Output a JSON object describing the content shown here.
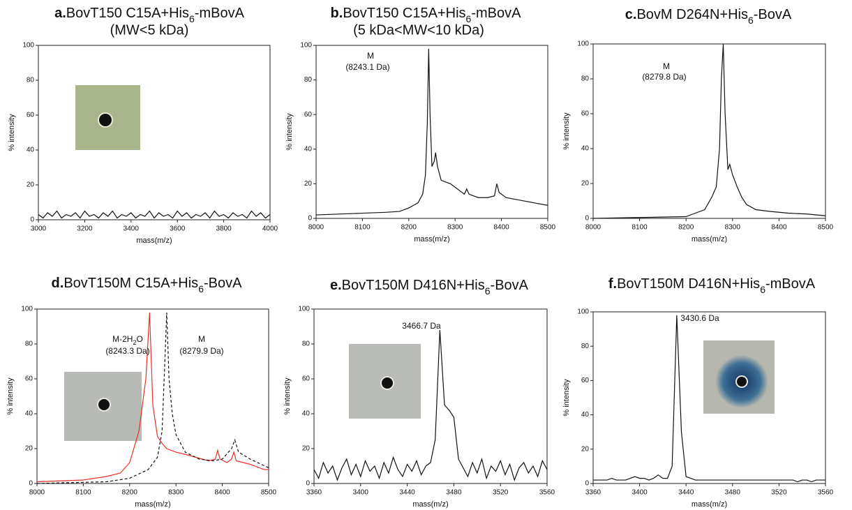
{
  "chart_data": [
    {
      "type": "line",
      "label": "a.",
      "title": [
        "BovT150 C15A+His",
        "6",
        "-mBovA"
      ],
      "subtitle": "(MW<5 kDa)",
      "xlabel": "mass(m/z)",
      "ylabel": "% intensity",
      "xlim": [
        3000,
        4000
      ],
      "xticks": [
        3000,
        3200,
        3400,
        3600,
        3800,
        4000
      ],
      "ylim": [
        0,
        100
      ],
      "yticks": [
        0,
        20,
        40,
        60,
        80,
        100
      ],
      "series": [
        {
          "color": "#111111",
          "dashed": false,
          "x": [
            3000,
            3020,
            3040,
            3060,
            3080,
            3100,
            3120,
            3140,
            3160,
            3180,
            3200,
            3220,
            3240,
            3260,
            3280,
            3300,
            3320,
            3340,
            3360,
            3380,
            3400,
            3420,
            3440,
            3460,
            3480,
            3500,
            3520,
            3540,
            3560,
            3580,
            3600,
            3620,
            3640,
            3660,
            3680,
            3700,
            3720,
            3740,
            3760,
            3780,
            3800,
            3820,
            3840,
            3860,
            3880,
            3900,
            3920,
            3940,
            3960,
            3980,
            4000
          ],
          "values": [
            3,
            1,
            4,
            2,
            5,
            1,
            3,
            2,
            4,
            1,
            5,
            2,
            3,
            1,
            4,
            2,
            5,
            1,
            3,
            2,
            4,
            1,
            3,
            2,
            5,
            1,
            4,
            2,
            3,
            1,
            5,
            2,
            4,
            1,
            3,
            2,
            4,
            1,
            5,
            2,
            3,
            1,
            4,
            2,
            3,
            1,
            5,
            2,
            4,
            1,
            3
          ]
        }
      ],
      "annotations": []
    },
    {
      "type": "line",
      "label": "b.",
      "title": [
        "BovT150 C15A+His",
        "6",
        "-mBovA"
      ],
      "subtitle": "(5 kDa<MW<10 kDa)",
      "xlabel": "mass(m/z)",
      "ylabel": "% intensity",
      "xlim": [
        8000,
        8500
      ],
      "xticks": [
        8000,
        8100,
        8200,
        8300,
        8400,
        8500
      ],
      "ylim": [
        0,
        100
      ],
      "yticks": [
        0,
        20,
        40,
        60,
        80,
        100
      ],
      "series": [
        {
          "color": "#111111",
          "dashed": false,
          "x": [
            8000,
            8050,
            8100,
            8150,
            8180,
            8200,
            8220,
            8230,
            8236,
            8240,
            8243,
            8246,
            8250,
            8255,
            8258,
            8262,
            8270,
            8280,
            8290,
            8300,
            8310,
            8320,
            8325,
            8330,
            8350,
            8370,
            8385,
            8390,
            8395,
            8410,
            8430,
            8450,
            8470,
            8500
          ],
          "values": [
            2,
            2.5,
            3,
            3.5,
            4,
            6,
            9,
            14,
            25,
            55,
            98,
            60,
            30,
            33,
            38,
            30,
            22,
            21,
            20,
            18,
            16,
            14,
            17,
            14,
            12,
            12,
            13,
            20,
            15,
            12,
            11,
            10,
            9,
            7.5
          ]
        }
      ],
      "annotations": [
        [
          "M"
        ],
        [
          "(8243.1 Da)"
        ]
      ]
    },
    {
      "type": "line",
      "label": "c.",
      "title": [
        "BovM D264N+His",
        "6",
        "-BovA"
      ],
      "xlabel": "mass(m/z)",
      "ylabel": "% intensity",
      "xlim": [
        8000,
        8500
      ],
      "xticks": [
        8000,
        8100,
        8200,
        8300,
        8400,
        8500
      ],
      "ylim": [
        0,
        100
      ],
      "yticks": [
        0,
        20,
        40,
        60,
        80,
        100
      ],
      "series": [
        {
          "color": "#111111",
          "dashed": false,
          "x": [
            8000,
            8100,
            8200,
            8220,
            8240,
            8255,
            8265,
            8272,
            8276,
            8280,
            8284,
            8290,
            8294,
            8300,
            8310,
            8320,
            8330,
            8350,
            8380,
            8420,
            8460,
            8500
          ],
          "values": [
            0,
            0.5,
            1,
            3,
            5,
            12,
            18,
            40,
            80,
            100,
            60,
            28,
            31,
            25,
            18,
            12,
            8,
            5,
            4,
            3,
            2.5,
            1.5
          ]
        }
      ],
      "annotations": [
        [
          "M"
        ],
        [
          "(8279.8 Da)"
        ]
      ]
    },
    {
      "type": "line",
      "label": "d.",
      "title": [
        "BovT150M C15A+His",
        "6",
        "-BovA"
      ],
      "xlabel": "mass(m/z)",
      "ylabel": "% intensity",
      "xlim": [
        8000,
        8500
      ],
      "xticks": [
        8000,
        8100,
        8200,
        8300,
        8400,
        8500
      ],
      "ylim": [
        0,
        100
      ],
      "yticks": [
        0,
        20,
        40,
        60,
        80,
        100
      ],
      "series": [
        {
          "color": "#e8302a",
          "dashed": false,
          "x": [
            8000,
            8100,
            8150,
            8180,
            8200,
            8220,
            8235,
            8243,
            8250,
            8260,
            8270,
            8280,
            8300,
            8330,
            8370,
            8385,
            8390,
            8395,
            8410,
            8420,
            8425,
            8430,
            8460,
            8490,
            8500
          ],
          "values": [
            1,
            2,
            4,
            6,
            12,
            30,
            60,
            98,
            45,
            27,
            23,
            20,
            18,
            16,
            13,
            14,
            19,
            14,
            12,
            14,
            18,
            13,
            11,
            8,
            8
          ]
        },
        {
          "color": "#111111",
          "dashed": true,
          "x": [
            8000,
            8150,
            8200,
            8240,
            8260,
            8270,
            8276,
            8280,
            8285,
            8292,
            8300,
            8320,
            8350,
            8380,
            8400,
            8420,
            8427,
            8435,
            8460,
            8500
          ],
          "values": [
            0,
            1,
            3,
            8,
            15,
            30,
            70,
            98,
            60,
            40,
            28,
            18,
            14,
            13,
            14,
            20,
            25,
            18,
            14,
            9
          ]
        }
      ],
      "annotations": [
        [
          "M-2H",
          "2",
          "O"
        ],
        [
          "(8243.3 Da)"
        ],
        [
          "M"
        ],
        [
          "(8279.9 Da)"
        ]
      ]
    },
    {
      "type": "line",
      "label": "e.",
      "title": [
        "BovT150M D416N+His",
        "6",
        "-BovA"
      ],
      "xlabel": "mass(m/z)",
      "ylabel": "% intensity",
      "xlim": [
        3360,
        3560
      ],
      "xticks": [
        3360,
        3400,
        3440,
        3480,
        3520,
        3560
      ],
      "ylim": [
        0,
        100
      ],
      "yticks": [
        0,
        20,
        40,
        60,
        80,
        100
      ],
      "series": [
        {
          "color": "#111111",
          "dashed": false,
          "x": [
            3360,
            3364,
            3368,
            3372,
            3376,
            3380,
            3384,
            3388,
            3392,
            3396,
            3400,
            3404,
            3408,
            3412,
            3416,
            3420,
            3424,
            3428,
            3432,
            3436,
            3440,
            3444,
            3448,
            3452,
            3456,
            3460,
            3464,
            3468,
            3472,
            3476,
            3480,
            3484,
            3488,
            3492,
            3496,
            3500,
            3504,
            3508,
            3512,
            3516,
            3520,
            3524,
            3528,
            3532,
            3536,
            3540,
            3544,
            3548,
            3552,
            3556,
            3560
          ],
          "values": [
            8,
            3,
            12,
            6,
            10,
            2,
            9,
            14,
            5,
            11,
            4,
            13,
            7,
            10,
            3,
            12,
            6,
            15,
            8,
            4,
            11,
            7,
            13,
            5,
            10,
            12,
            25,
            88,
            45,
            42,
            38,
            14,
            9,
            4,
            12,
            6,
            14,
            3,
            10,
            7,
            13,
            5,
            11,
            2,
            9,
            12,
            6,
            10,
            4,
            13,
            8
          ]
        }
      ],
      "annotations": [
        [
          "3466.7 Da"
        ]
      ]
    },
    {
      "type": "line",
      "label": "f.",
      "title": [
        "BovT150M D416N+His",
        "6",
        "-mBovA"
      ],
      "xlabel": "mass(m/z)",
      "ylabel": "% intensity",
      "xlim": [
        3360,
        3560
      ],
      "xticks": [
        3360,
        3400,
        3440,
        3480,
        3520,
        3560
      ],
      "ylim": [
        0,
        100
      ],
      "yticks": [
        0,
        20,
        40,
        60,
        80,
        100
      ],
      "series": [
        {
          "color": "#111111",
          "dashed": false,
          "x": [
            3360,
            3364,
            3368,
            3372,
            3376,
            3380,
            3384,
            3388,
            3392,
            3396,
            3400,
            3404,
            3408,
            3412,
            3416,
            3420,
            3424,
            3428,
            3432,
            3436,
            3440,
            3444,
            3448,
            3452,
            3456,
            3460,
            3464,
            3468,
            3472,
            3476,
            3480,
            3484,
            3488,
            3492,
            3496,
            3500,
            3504,
            3508,
            3512,
            3516,
            3520,
            3524,
            3528,
            3532,
            3536,
            3540,
            3544,
            3548,
            3552,
            3556,
            3560
          ],
          "values": [
            2,
            2,
            2,
            2,
            3,
            2,
            2,
            2,
            3,
            4,
            3,
            3,
            2,
            3,
            5,
            3,
            3,
            10,
            98,
            30,
            4,
            3,
            2,
            2,
            2,
            2,
            2,
            2,
            2,
            2,
            2,
            2,
            2,
            2,
            2,
            2,
            2,
            2,
            2,
            2,
            2,
            2,
            2,
            2,
            1,
            2,
            2,
            1,
            2,
            2,
            2
          ]
        }
      ],
      "annotations": [
        [
          "3430.6 Da"
        ]
      ]
    }
  ]
}
